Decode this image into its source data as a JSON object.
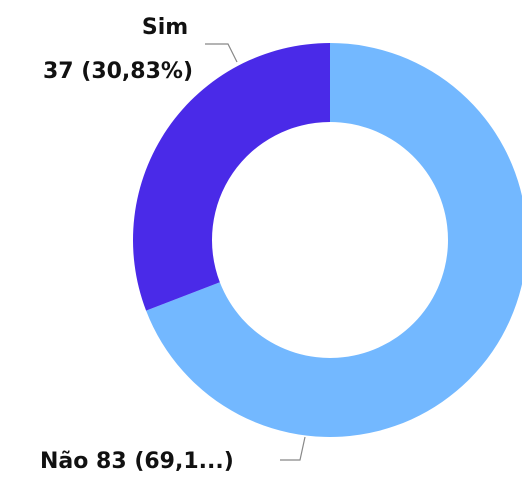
{
  "chart_data": {
    "type": "donut",
    "categories": [
      "Sim",
      "Não"
    ],
    "values": [
      37,
      83
    ],
    "value_labels": [
      "37 (30,83%)",
      "83 (69,1...)"
    ],
    "colors": [
      "#4a2ae8",
      "#73b8ff"
    ]
  }
}
